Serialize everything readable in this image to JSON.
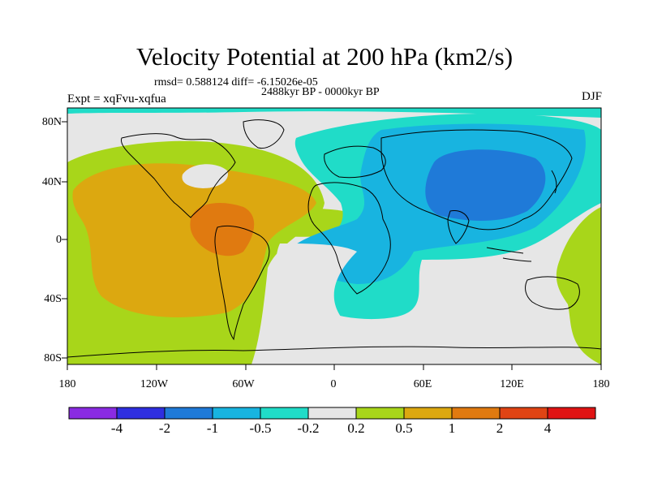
{
  "title": "Velocity Potential at 200 hPa (km2/s)",
  "stat_line": "rmsd= 0.588124 diff= -6.15026e-05",
  "period": "2488kyr BP - 0000kyr BP",
  "experiment": "Expt = xqFvu-xqfua",
  "season": "DJF",
  "lat_labels": [
    "80N",
    "40N",
    "0",
    "40S",
    "80S"
  ],
  "lon_labels": [
    "180",
    "120W",
    "60W",
    "0",
    "60E",
    "120E",
    "180"
  ],
  "colorbar": {
    "colors": [
      "#8a2be2",
      "#2f2fe0",
      "#1f7ad8",
      "#18b4e0",
      "#20dcc8",
      "#e6e6e6",
      "#a8d61a",
      "#dca810",
      "#e07a10",
      "#e04414",
      "#e01414"
    ],
    "labels": [
      "-4",
      "-2",
      "-1",
      "-0.5",
      "-0.2",
      "0.2",
      "0.5",
      "1",
      "2",
      "4"
    ]
  },
  "chart_data": {
    "type": "heatmap",
    "title": "Velocity Potential at 200 hPa (km2/s)",
    "levels": [
      -4,
      -2,
      -1,
      -0.5,
      -0.2,
      0.2,
      0.5,
      1,
      2,
      4
    ],
    "lon_range": [
      -180,
      180
    ],
    "lat_range": [
      -90,
      90
    ],
    "features": [
      {
        "name": "east-pacific-americas-positive",
        "center_lon": -95,
        "center_lat": 5,
        "level_min": 0.5,
        "level_max": 1
      },
      {
        "name": "caribbean-positive-max",
        "center_lon": -70,
        "center_lat": 8,
        "level_min": 1,
        "level_max": 2
      },
      {
        "name": "asia-negative-min",
        "center_lon": 95,
        "center_lat": 45,
        "level_min": -1,
        "level_max": -0.5
      },
      {
        "name": "africa-indian-negative",
        "center_lon": 40,
        "center_lat": 0,
        "level_min": -0.5,
        "level_max": -0.2
      }
    ]
  }
}
